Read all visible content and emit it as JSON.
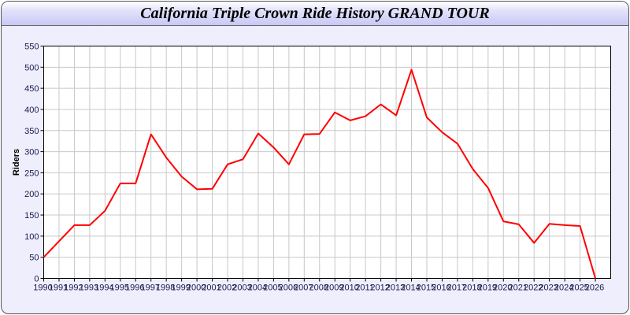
{
  "window": {
    "title": "California Triple Crown Ride History GRAND TOUR"
  },
  "chart_data": {
    "type": "line",
    "title": "California Triple Crown Ride History GRAND TOUR",
    "xlabel": "",
    "ylabel": "Riders",
    "xlim": [
      1990,
      2027
    ],
    "ylim": [
      0,
      550
    ],
    "grid": true,
    "yticks": [
      0,
      50,
      100,
      150,
      200,
      250,
      300,
      350,
      400,
      450,
      500,
      550
    ],
    "x": [
      1990,
      1991,
      1992,
      1993,
      1994,
      1995,
      1996,
      1997,
      1998,
      1999,
      2000,
      2001,
      2002,
      2003,
      2004,
      2005,
      2006,
      2007,
      2008,
      2009,
      2010,
      2011,
      2012,
      2013,
      2014,
      2015,
      2016,
      2017,
      2018,
      2019,
      2020,
      2021,
      2022,
      2023,
      2024,
      2025,
      2026
    ],
    "series": [
      {
        "values": [
          50,
          88,
          126,
          126,
          160,
          225,
          225,
          341,
          286,
          241,
          211,
          212,
          270,
          282,
          343,
          310,
          270,
          341,
          342,
          393,
          374,
          384,
          412,
          386,
          494,
          381,
          346,
          319,
          259,
          214,
          135,
          128,
          84,
          129,
          126,
          124,
          0
        ],
        "color": "#ff0000"
      }
    ]
  },
  "colors": {
    "background": "#eeeefc",
    "line": "#ff0000",
    "grid": "#c8c8c8",
    "tick_text": "#1a1a4a"
  }
}
